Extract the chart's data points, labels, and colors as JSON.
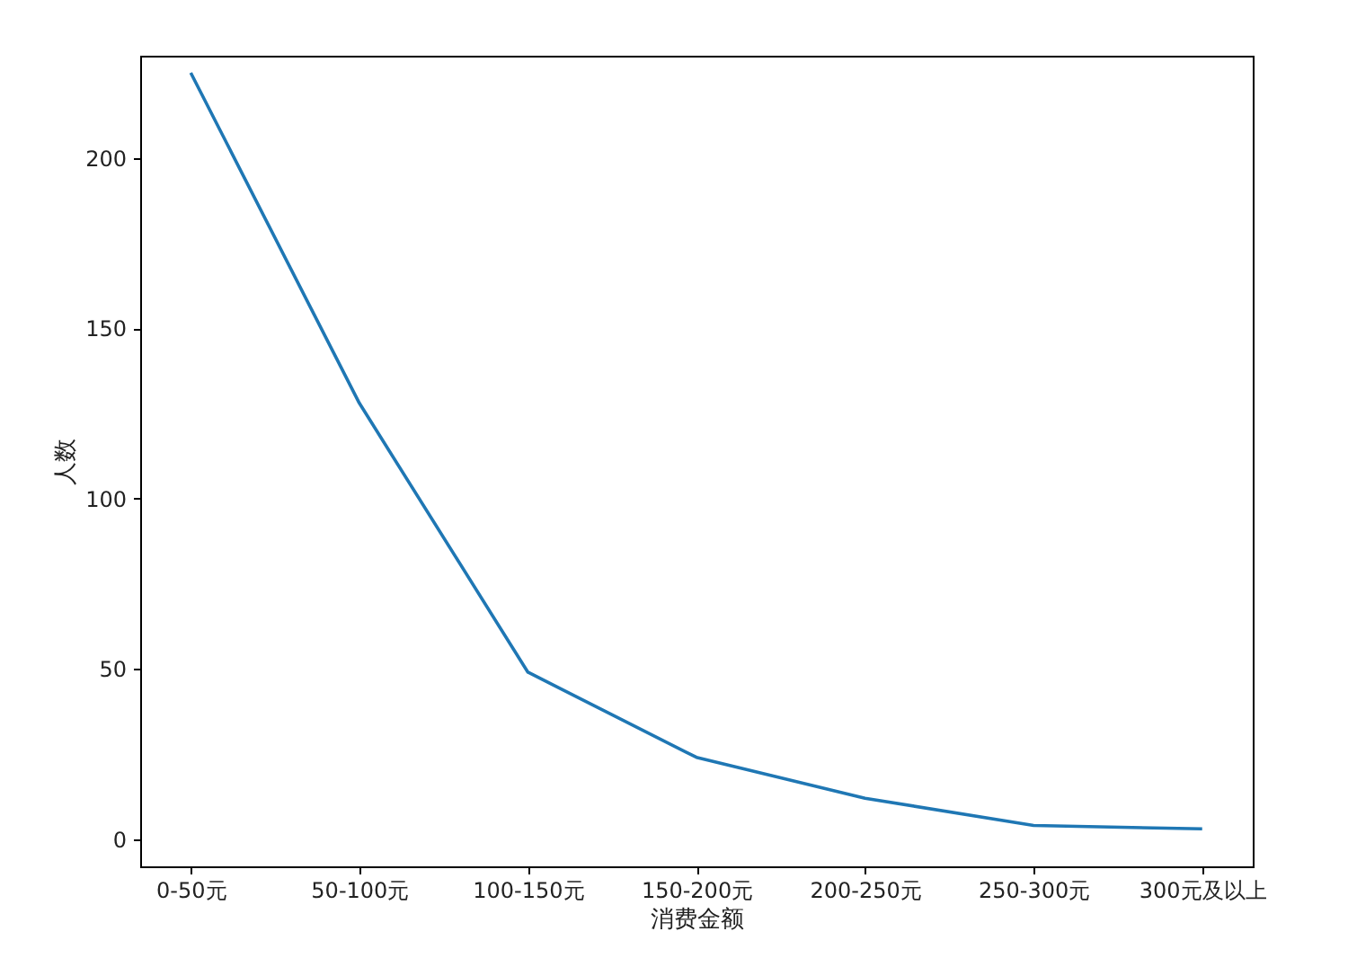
{
  "chart_data": {
    "type": "line",
    "xlabel": "消费金额",
    "ylabel": "人数",
    "categories": [
      "0-50元",
      "50-100元",
      "100-150元",
      "150-200元",
      "200-250元",
      "250-300元",
      "300元及以上"
    ],
    "series": [
      {
        "color": "#1f77b4",
        "values": [
          225,
          128,
          49,
          24,
          12,
          4,
          3
        ]
      }
    ],
    "ylim": [
      -8,
      230
    ],
    "yticks": [
      0,
      50,
      100,
      150,
      200
    ],
    "grid": false,
    "marker": "none"
  }
}
